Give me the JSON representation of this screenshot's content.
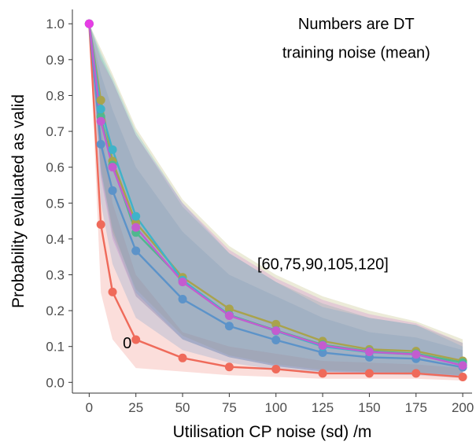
{
  "chart_data": {
    "type": "line",
    "xlabel": "Utilisation CP noise (sd) /m",
    "ylabel": "Probability evaluated as valid",
    "xlim": [
      -9,
      205
    ],
    "ylim": [
      -0.03,
      1.04
    ],
    "xticks": [
      0,
      25,
      50,
      75,
      100,
      125,
      150,
      175,
      200
    ],
    "yticks": [
      0.0,
      0.1,
      0.2,
      0.3,
      0.4,
      0.5,
      0.6,
      0.7,
      0.8,
      0.9,
      1.0
    ],
    "x": [
      0,
      6.25,
      12.5,
      25,
      50,
      75,
      100,
      125,
      150,
      175,
      200
    ],
    "series": [
      {
        "name": "0",
        "color": "#ef6a5a",
        "values": [
          1.0,
          0.44,
          0.252,
          0.119,
          0.068,
          0.043,
          0.037,
          0.025,
          0.025,
          0.025,
          0.015
        ],
        "band_low": [
          1.0,
          0.25,
          0.12,
          0.04,
          0.03,
          0.02,
          0.015,
          0.01,
          0.01,
          0.01,
          0.005
        ],
        "band_high": [
          1.0,
          0.72,
          0.5,
          0.3,
          0.14,
          0.1,
          0.08,
          0.06,
          0.055,
          0.05,
          0.04
        ]
      },
      {
        "name": "60",
        "color": "#5c93c9",
        "values": [
          1.0,
          0.664,
          0.535,
          0.367,
          0.232,
          0.157,
          0.118,
          0.083,
          0.07,
          0.066,
          0.042
        ],
        "band_low": [
          1.0,
          0.5,
          0.33,
          0.18,
          0.09,
          0.055,
          0.035,
          0.025,
          0.022,
          0.02,
          0.012
        ],
        "band_high": [
          1.0,
          0.86,
          0.76,
          0.6,
          0.42,
          0.3,
          0.24,
          0.18,
          0.14,
          0.125,
          0.09
        ]
      },
      {
        "name": "75",
        "color": "#a9a34c",
        "values": [
          1.0,
          0.787,
          0.617,
          0.445,
          0.293,
          0.205,
          0.162,
          0.115,
          0.092,
          0.087,
          0.06
        ],
        "band_low": [
          1.0,
          0.6,
          0.42,
          0.26,
          0.13,
          0.075,
          0.05,
          0.035,
          0.03,
          0.028,
          0.02
        ],
        "band_high": [
          1.0,
          0.93,
          0.86,
          0.71,
          0.51,
          0.38,
          0.3,
          0.24,
          0.2,
          0.17,
          0.12
        ]
      },
      {
        "name": "90",
        "color": "#4fb88e",
        "values": [
          1.0,
          0.741,
          0.606,
          0.418,
          0.285,
          0.188,
          0.145,
          0.105,
          0.087,
          0.08,
          0.055
        ],
        "band_low": [
          1.0,
          0.58,
          0.41,
          0.24,
          0.12,
          0.07,
          0.045,
          0.03,
          0.028,
          0.025,
          0.018
        ],
        "band_high": [
          1.0,
          0.91,
          0.84,
          0.69,
          0.49,
          0.36,
          0.28,
          0.22,
          0.18,
          0.16,
          0.11
        ]
      },
      {
        "name": "105",
        "color": "#3fb3c9",
        "values": [
          1.0,
          0.762,
          0.649,
          0.463,
          0.285,
          0.187,
          0.143,
          0.1,
          0.084,
          0.078,
          0.048
        ],
        "band_low": [
          1.0,
          0.59,
          0.43,
          0.25,
          0.12,
          0.07,
          0.045,
          0.03,
          0.027,
          0.025,
          0.016
        ],
        "band_high": [
          1.0,
          0.92,
          0.85,
          0.7,
          0.5,
          0.36,
          0.28,
          0.21,
          0.18,
          0.16,
          0.1
        ]
      },
      {
        "name": "120",
        "color": "#c45ccf",
        "values": [
          1.0,
          0.728,
          0.6,
          0.432,
          0.28,
          0.186,
          0.144,
          0.103,
          0.085,
          0.078,
          0.047
        ],
        "band_low": [
          1.0,
          0.57,
          0.4,
          0.24,
          0.12,
          0.07,
          0.045,
          0.03,
          0.027,
          0.025,
          0.016
        ],
        "band_high": [
          1.0,
          0.9,
          0.84,
          0.69,
          0.5,
          0.37,
          0.29,
          0.23,
          0.19,
          0.165,
          0.11
        ]
      }
    ],
    "highlight_point": {
      "x": 0,
      "y": 1.0,
      "color": "#e73de5"
    },
    "annotations": [
      {
        "text": "Numbers are DT",
        "x": 143,
        "y": 0.985
      },
      {
        "text": "training noise (mean)",
        "x": 143,
        "y": 0.905
      },
      {
        "text": "[60,75,90,105,120]",
        "x": 90,
        "y": 0.315
      },
      {
        "text": "0",
        "x": 18,
        "y": 0.095
      }
    ],
    "grid": false,
    "legend": "none"
  }
}
